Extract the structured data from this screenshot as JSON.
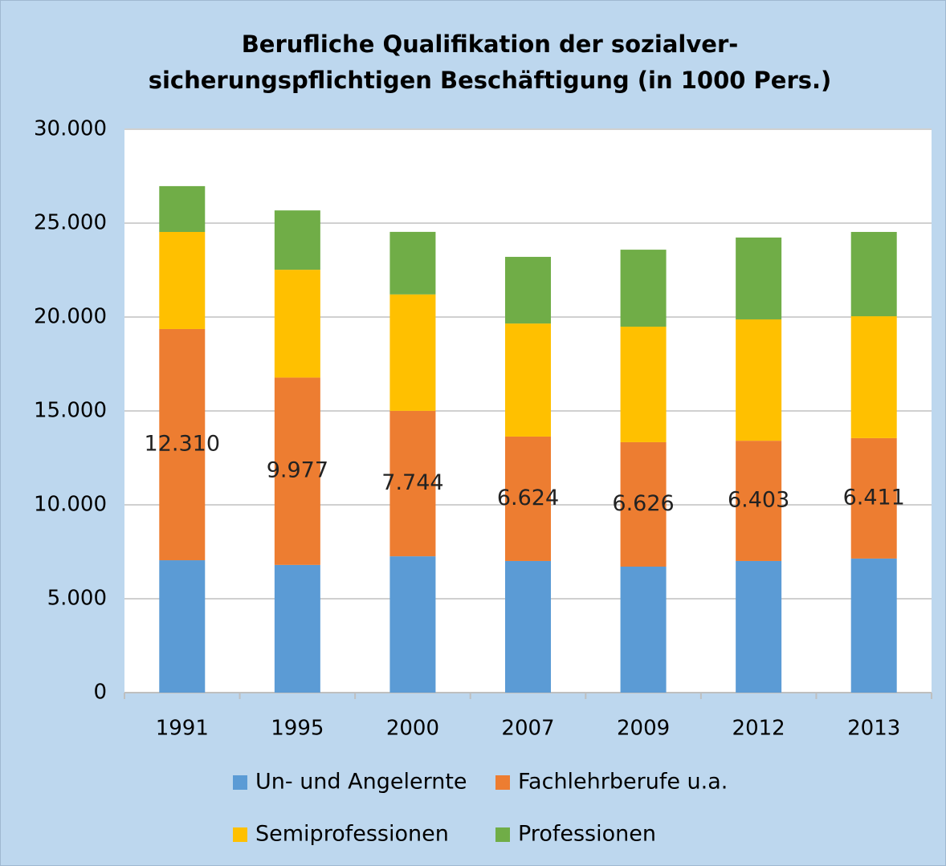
{
  "chart_data": {
    "type": "stacked_bar",
    "title": [
      "Berufliche Qualifikation der sozialver-",
      "sicherungspflichtigen Beschäftigung (in 1000 Pers.)"
    ],
    "categories": [
      "1991",
      "1995",
      "2000",
      "2007",
      "2009",
      "2012",
      "2013"
    ],
    "series": [
      {
        "name": "Un- und Angelernte",
        "color": "#5b9bd5",
        "values": [
          7050,
          6800,
          7260,
          7010,
          6710,
          7010,
          7140
        ]
      },
      {
        "name": "Fachlehrberufe u.a.",
        "color": "#ed7d31",
        "values": [
          12310,
          9977,
          7744,
          6624,
          6626,
          6403,
          6411
        ],
        "value_labels": [
          "12.310",
          "9.977",
          "7.744",
          "6.624",
          "6.626",
          "6.403",
          "6.411"
        ]
      },
      {
        "name": "Semiprofessionen",
        "color": "#ffc000",
        "values": [
          5170,
          5740,
          6200,
          6020,
          6150,
          6460,
          6490
        ]
      },
      {
        "name": "Professionen",
        "color": "#70ad47",
        "values": [
          2440,
          3160,
          3330,
          3550,
          4100,
          4360,
          4490
        ]
      }
    ],
    "ylim": [
      0,
      30000
    ],
    "yticks": [
      0,
      {
        "value": 5000,
        "label": "5.000"
      },
      {
        "value": 10000,
        "label": "10.000"
      },
      {
        "value": 15000,
        "label": "15.000"
      },
      {
        "value": 20000,
        "label": "20.000"
      },
      {
        "value": 25000,
        "label": "25.000"
      },
      {
        "value": 30000,
        "label": "30.000"
      }
    ],
    "grid": true,
    "legend": "bottom"
  }
}
